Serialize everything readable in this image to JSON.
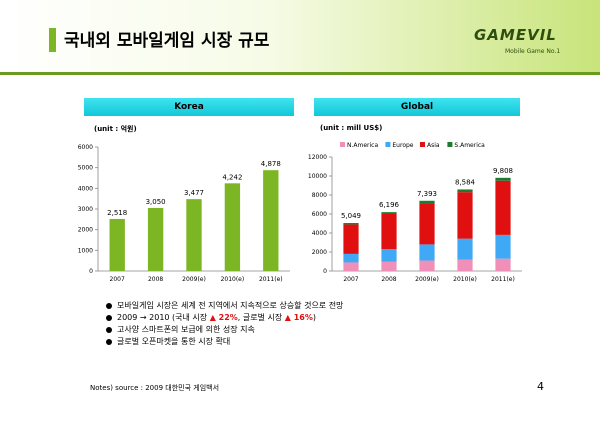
{
  "header": {
    "title": "국내외 모바일게임 시장 규모",
    "logo_text": "GAMEVIL",
    "logo_tagline": "Mobile Game No.1",
    "accent_color": "#7cb624"
  },
  "panels": {
    "korea": {
      "label": "Korea",
      "unit": "(unit : 억원)"
    },
    "global": {
      "label": "Global",
      "unit": "(unit : mill US$)"
    }
  },
  "chart_data": [
    {
      "type": "bar",
      "title": "Korea",
      "categories": [
        "2007",
        "2008",
        "2009(e)",
        "2010(e)",
        "2011(e)"
      ],
      "values": [
        2518,
        3050,
        3477,
        4242,
        4878
      ],
      "value_labels": [
        "2,518",
        "3,050",
        "3,477",
        "4,242",
        "4,878"
      ],
      "ylim": [
        0,
        6000
      ],
      "yticks": [
        0,
        1000,
        2000,
        3000,
        4000,
        5000,
        6000
      ],
      "color": "#7cb624",
      "grid": false
    },
    {
      "type": "bar",
      "stacked": true,
      "title": "Global",
      "categories": [
        "2007",
        "2008",
        "2009(e)",
        "2010(e)",
        "2011(e)"
      ],
      "series": [
        {
          "name": "N.America",
          "color": "#f08fb8",
          "values": [
            900,
            1000,
            1100,
            1200,
            1300
          ]
        },
        {
          "name": "Europe",
          "color": "#3fa9f5",
          "values": [
            900,
            1300,
            1700,
            2200,
            2500
          ]
        },
        {
          "name": "Asia",
          "color": "#e01010",
          "values": [
            3100,
            3700,
            4300,
            4900,
            5700
          ]
        },
        {
          "name": "S.America",
          "color": "#1e7a2e",
          "values": [
            149,
            196,
            293,
            284,
            308
          ]
        }
      ],
      "totals": [
        5049,
        6196,
        7393,
        8584,
        9808
      ],
      "total_labels": [
        "5,049",
        "6,196",
        "7,393",
        "8,584",
        "9,808"
      ],
      "ylim": [
        0,
        12000
      ],
      "yticks": [
        0,
        2000,
        4000,
        6000,
        8000,
        10000,
        12000
      ],
      "legend_position": "top",
      "grid": false
    }
  ],
  "bullets": [
    {
      "parts": [
        {
          "text": "모바일게임 시장은 세계 전 지역에서 지속적으로 상승할 것으로 전망"
        }
      ]
    },
    {
      "parts": [
        {
          "text": "2009 → 2010 (국내 시장 "
        },
        {
          "text": "▲ 22%",
          "red": true
        },
        {
          "text": ", 글로벌 시장 "
        },
        {
          "text": "▲ 16%",
          "red": true
        },
        {
          "text": ")"
        }
      ]
    },
    {
      "parts": [
        {
          "text": "고사양 스마트폰의 보급에 의한 성장 지속"
        }
      ]
    },
    {
      "parts": [
        {
          "text": "글로벌 오픈마켓을 통한 시장 확대"
        }
      ]
    }
  ],
  "footer": {
    "note": "Notes) source : 2009 대한민국 게임백서",
    "page_number": "4"
  }
}
